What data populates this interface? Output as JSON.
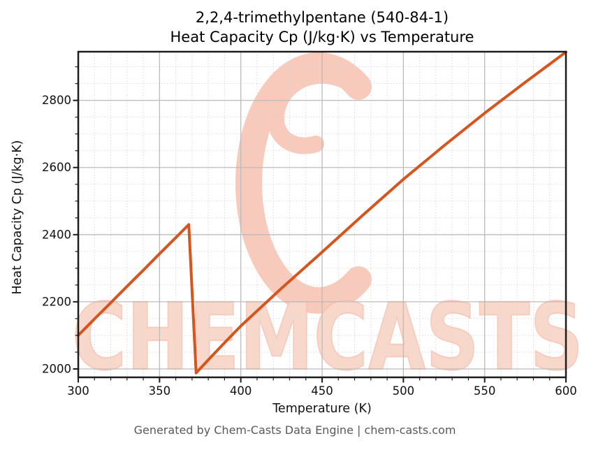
{
  "figure": {
    "footer": "Generated by Chem-Casts Data Engine | chem-casts.com"
  },
  "watermark": {
    "text": "CHEMCASTS",
    "text_fill": "#f9d8cc",
    "text_edge": "#f3b7a5",
    "logo_color": "#f8cabb",
    "logo_name": "chemcasts-c-swirl-logo"
  },
  "chart_data": {
    "type": "line",
    "title_line1": "2,2,4-trimethylpentane (540-84-1)",
    "title_line2": "Heat Capacity Cp (J/kg·K) vs Temperature",
    "xlabel": "Temperature (K)",
    "ylabel": "Heat Capacity Cp (J/kg·K)",
    "xlim": [
      300,
      600
    ],
    "ylim": [
      1975,
      2945
    ],
    "x_major_ticks": [
      300,
      350,
      400,
      450,
      500,
      550,
      600
    ],
    "y_major_ticks": [
      2000,
      2200,
      2400,
      2600,
      2800
    ],
    "x_minor_step": 10,
    "y_minor_step": 50,
    "grid": "major-solid-minor-dotted",
    "legend": "none",
    "line_color": "#d6541e",
    "line_width": 4,
    "series": [
      {
        "name": "Heat Capacity Cp (J/kg·K)",
        "points": [
          [
            300,
            2100
          ],
          [
            310,
            2149
          ],
          [
            320,
            2197
          ],
          [
            330,
            2246
          ],
          [
            340,
            2294
          ],
          [
            350,
            2343
          ],
          [
            360,
            2391
          ],
          [
            368,
            2430
          ],
          [
            372.5,
            1988
          ],
          [
            380,
            2027
          ],
          [
            390,
            2078
          ],
          [
            400,
            2128
          ],
          [
            425,
            2240
          ],
          [
            450,
            2348
          ],
          [
            475,
            2458
          ],
          [
            500,
            2565
          ],
          [
            525,
            2665
          ],
          [
            550,
            2762
          ],
          [
            575,
            2854
          ],
          [
            600,
            2944
          ]
        ]
      }
    ]
  }
}
